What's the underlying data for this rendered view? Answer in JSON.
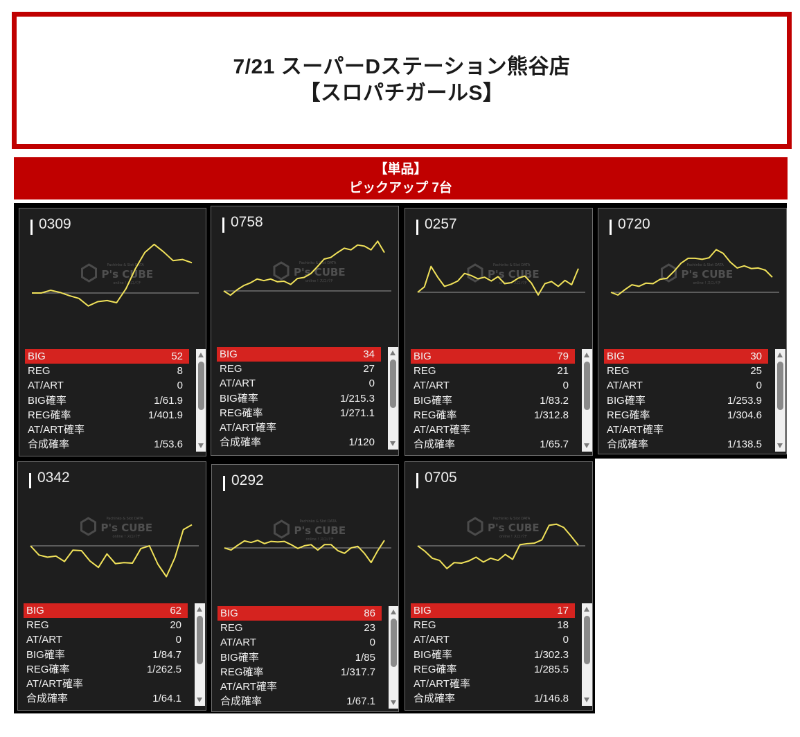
{
  "header": {
    "title_line1": "7/21 スーパーDステーション熊谷店",
    "title_line2": "【スロパチガールS】"
  },
  "banner": {
    "line1": "【単品】",
    "line2": "ピックアップ 7台"
  },
  "watermark": {
    "brand": "P's CUBE",
    "top": "Pachinko & Slot DATA",
    "sub": "online ! スロパチ"
  },
  "labels": [
    "BIG",
    "REG",
    "AT/ART",
    "BIG確率",
    "REG確率",
    "AT/ART確率",
    "合成確率"
  ],
  "colors": {
    "accent": "#c00000",
    "big_row": "#d5231f",
    "line": "#f2e35a",
    "card_bg": "#1e1e1e"
  },
  "machines": [
    {
      "id": "0309",
      "stats": [
        "52",
        "8",
        "0",
        "1/61.9",
        "1/401.9",
        "",
        "1/53.6"
      ],
      "chart": {
        "y": [
          0,
          0,
          0.5,
          0.1,
          -0.5,
          -1,
          -2.4,
          -1.6,
          -1.4,
          -1.8,
          0.8,
          4.5,
          7.5,
          9,
          7.6,
          6,
          6.2,
          5.6
        ]
      }
    },
    {
      "id": "0758",
      "stats": [
        "34",
        "27",
        "0",
        "1/215.3",
        "1/271.1",
        "",
        "1/120"
      ],
      "chart": {
        "y": [
          0,
          -0.8,
          0.2,
          1,
          1.5,
          2.2,
          1.9,
          2.2,
          1.7,
          1.8,
          1.2,
          2.3,
          2.5,
          3.2,
          4.5,
          5.9,
          6.2,
          7.1,
          7.9,
          7.6,
          8.5,
          8.3,
          7.6,
          9.2,
          7.1
        ]
      }
    },
    {
      "id": "0257",
      "stats": [
        "79",
        "21",
        "0",
        "1/83.2",
        "1/312.8",
        "",
        "1/65.7"
      ],
      "chart": {
        "y": [
          0,
          1,
          4.8,
          2.8,
          1.1,
          1.5,
          2.1,
          3.5,
          3.1,
          2.5,
          2.8,
          2.1,
          2.9,
          1.6,
          1.8,
          2.6,
          3,
          1.7,
          -0.5,
          1.6,
          2,
          1.1,
          2.2,
          1.4,
          4.4
        ]
      }
    },
    {
      "id": "0720",
      "stats": [
        "30",
        "25",
        "0",
        "1/253.9",
        "1/304.6",
        "",
        "1/138.5"
      ],
      "chart": {
        "y": [
          0,
          -0.5,
          0.5,
          1.4,
          1.1,
          1.7,
          1.6,
          2.4,
          2.6,
          3.9,
          5.4,
          6.3,
          6.3,
          6.1,
          6.4,
          7.9,
          7.2,
          5.6,
          4.5,
          4.9,
          4.4,
          4.5,
          4.1,
          2.8
        ]
      }
    },
    {
      "id": "0342",
      "stats": [
        "62",
        "20",
        "0",
        "1/84.7",
        "1/262.5",
        "",
        "1/64.1"
      ],
      "chart": {
        "y": [
          0,
          -1.7,
          -2.1,
          -1.9,
          -2.9,
          -0.8,
          -0.9,
          -2.8,
          -4,
          -1.5,
          -3.3,
          -3.1,
          -3.2,
          -0.5,
          0,
          -3.4,
          -5.7,
          -2.2,
          3,
          3.9
        ]
      }
    },
    {
      "id": "0292",
      "stats": [
        "86",
        "23",
        "0",
        "1/85",
        "1/317.7",
        "",
        "1/67.1"
      ],
      "chart": {
        "y": [
          0,
          -0.4,
          0.5,
          1.3,
          1,
          1.4,
          0.8,
          1.2,
          1.1,
          1.2,
          0.6,
          -0.1,
          0.4,
          0.6,
          -0.4,
          0.6,
          0.6,
          -0.5,
          -1,
          0,
          0.3,
          -1,
          -2.7,
          -0.5,
          1.4
        ]
      }
    },
    {
      "id": "0705",
      "stats": [
        "17",
        "18",
        "0",
        "1/302.3",
        "1/285.5",
        "",
        "1/146.8"
      ],
      "chart": {
        "y": [
          0,
          -1,
          -2.3,
          -2.7,
          -4.2,
          -3.1,
          -3.2,
          -2.8,
          -2.1,
          -3,
          -2.3,
          -2.7,
          -1.6,
          -2.5,
          0.2,
          0.4,
          0.5,
          1.1,
          3.8,
          4,
          3.4,
          1.8,
          0.1
        ]
      }
    }
  ]
}
